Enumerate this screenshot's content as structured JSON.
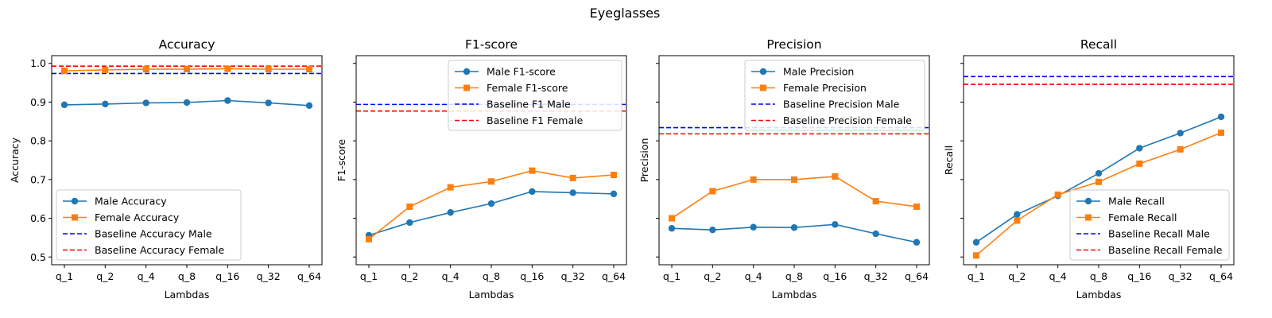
{
  "figure": {
    "suptitle": "Eyeglasses"
  },
  "chart_data": [
    {
      "type": "line",
      "title": "Accuracy",
      "xlabel": "Lambdas",
      "ylabel": "Accuracy",
      "categories": [
        "q_1",
        "q_2",
        "q_4",
        "q_8",
        "q_16",
        "q_32",
        "q_64"
      ],
      "ylim": [
        0.48,
        1.02
      ],
      "yticks": [
        "0.5",
        "0.6",
        "0.7",
        "0.8",
        "0.9",
        "1.0"
      ],
      "legend_position": "lower-left",
      "series": [
        {
          "name": "Male Accuracy",
          "color": "#1f77b4",
          "marker": "circle",
          "values": [
            0.893,
            0.895,
            0.898,
            0.899,
            0.904,
            0.898,
            0.891
          ]
        },
        {
          "name": "Female Accuracy",
          "color": "#ff7f0e",
          "marker": "square",
          "values": [
            0.981,
            0.983,
            0.985,
            0.985,
            0.986,
            0.985,
            0.985
          ]
        }
      ],
      "baselines": [
        {
          "name": "Baseline Accuracy Male",
          "color": "#0000ff",
          "value": 0.974
        },
        {
          "name": "Baseline Accuracy Female",
          "color": "#ff0000",
          "value": 0.993
        }
      ]
    },
    {
      "type": "line",
      "title": "F1-score",
      "xlabel": "Lambdas",
      "ylabel": "F1-score",
      "categories": [
        "q_1",
        "q_2",
        "q_4",
        "q_8",
        "q_16",
        "q_32",
        "q_64"
      ],
      "ylim": [
        0.48,
        1.02
      ],
      "yticks": [
        "",
        "",
        "",
        "",
        "",
        ""
      ],
      "legend_position": "upper-right",
      "series": [
        {
          "name": "Male F1-score",
          "color": "#1f77b4",
          "marker": "circle",
          "values": [
            0.556,
            0.589,
            0.615,
            0.638,
            0.669,
            0.666,
            0.663
          ]
        },
        {
          "name": "Female F1-score",
          "color": "#ff7f0e",
          "marker": "square",
          "values": [
            0.546,
            0.63,
            0.68,
            0.695,
            0.723,
            0.704,
            0.712
          ]
        }
      ],
      "baselines": [
        {
          "name": "Baseline F1 Male",
          "color": "#0000ff",
          "value": 0.894
        },
        {
          "name": "Baseline F1 Female",
          "color": "#ff0000",
          "value": 0.877
        }
      ]
    },
    {
      "type": "line",
      "title": "Precision",
      "xlabel": "Lambdas",
      "ylabel": "Precision",
      "categories": [
        "q_1",
        "q_2",
        "q_4",
        "q_8",
        "q_16",
        "q_32",
        "q_64"
      ],
      "ylim": [
        0.48,
        1.02
      ],
      "yticks": [
        "",
        "",
        "",
        "",
        "",
        ""
      ],
      "legend_position": "upper-right",
      "series": [
        {
          "name": "Male Precision",
          "color": "#1f77b4",
          "marker": "circle",
          "values": [
            0.574,
            0.57,
            0.577,
            0.576,
            0.584,
            0.56,
            0.538
          ]
        },
        {
          "name": "Female Precision",
          "color": "#ff7f0e",
          "marker": "square",
          "values": [
            0.6,
            0.67,
            0.7,
            0.7,
            0.708,
            0.644,
            0.63
          ]
        }
      ],
      "baselines": [
        {
          "name": "Baseline Precision Male",
          "color": "#0000ff",
          "value": 0.834
        },
        {
          "name": "Baseline Precision Female",
          "color": "#ff0000",
          "value": 0.818
        }
      ]
    },
    {
      "type": "line",
      "title": "Recall",
      "xlabel": "Lambdas",
      "ylabel": "Recall",
      "categories": [
        "q_1",
        "q_2",
        "q_4",
        "q_8",
        "q_16",
        "q_32",
        "q_64"
      ],
      "ylim": [
        0.48,
        1.02
      ],
      "yticks": [
        "",
        "",
        "",
        "",
        "",
        ""
      ],
      "legend_position": "lower-right",
      "series": [
        {
          "name": "Male Recall",
          "color": "#1f77b4",
          "marker": "circle",
          "values": [
            0.538,
            0.61,
            0.658,
            0.716,
            0.781,
            0.82,
            0.862
          ]
        },
        {
          "name": "Female Recall",
          "color": "#ff7f0e",
          "marker": "square",
          "values": [
            0.504,
            0.594,
            0.661,
            0.694,
            0.741,
            0.778,
            0.821
          ]
        }
      ],
      "baselines": [
        {
          "name": "Baseline Recall Male",
          "color": "#0000ff",
          "value": 0.966
        },
        {
          "name": "Baseline Recall Female",
          "color": "#ff0000",
          "value": 0.946
        }
      ]
    }
  ]
}
